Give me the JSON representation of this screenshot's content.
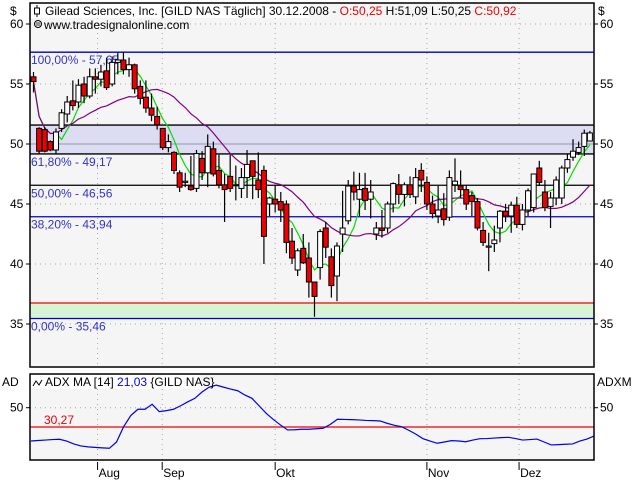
{
  "header": {
    "symbol_icon": "candlestick-icon",
    "title": "Gilead Sciences, Inc. [GILD NAS  Täglich] 30.12.2008 -",
    "open": "O:50,25",
    "high": "H:51,09",
    "low": "L:50,25",
    "close": "C:50,92",
    "copyright_icon": "copyright-icon",
    "website": "www.tradesignalonline.com"
  },
  "colors": {
    "up": "#ffffff",
    "down": "#ee0000",
    "fast_ma": "#00dd00",
    "slow_ma": "#800080",
    "fib": "#0000cc",
    "adx": "#0000ee",
    "threshold": "#ee0000"
  },
  "chart_data": [
    {
      "type": "candlestick",
      "yaxis_unit": "$",
      "ylim": [
        32,
        62
      ],
      "yticks": [
        "60",
        "55",
        "50",
        "45",
        "40",
        "35"
      ],
      "ytick_values": [
        60,
        55,
        50,
        45,
        40,
        35
      ],
      "xticks": [
        "Aug",
        "Sep",
        "Okt",
        "Nov",
        "Dez"
      ],
      "xtick_index": [
        11.4,
        22.9,
        43,
        70,
        86.4
      ],
      "grid": true,
      "ohlc": [
        [
          55.6,
          56.0,
          54.3,
          55.2
        ],
        [
          51.3,
          51.4,
          49.2,
          49.4
        ],
        [
          51.2,
          51.4,
          49.3,
          49.4
        ],
        [
          50.2,
          50.3,
          49.4,
          49.5
        ],
        [
          49.5,
          51.3,
          49.2,
          51.0
        ],
        [
          51.3,
          52.9,
          51.0,
          52.6
        ],
        [
          52.5,
          54.0,
          51.8,
          53.5
        ],
        [
          53.6,
          55.3,
          52.8,
          53.2
        ],
        [
          53.5,
          55.4,
          53.0,
          54.9
        ],
        [
          55.0,
          55.6,
          53.4,
          54.0
        ],
        [
          54.0,
          56.3,
          53.8,
          55.6
        ],
        [
          55.6,
          56.3,
          54.2,
          55.4
        ],
        [
          55.4,
          56.6,
          54.8,
          56.0
        ],
        [
          56.1,
          57.2,
          54.5,
          54.7
        ],
        [
          55.0,
          57.3,
          54.8,
          56.8
        ],
        [
          56.8,
          57.6,
          55.8,
          57.0
        ],
        [
          57.0,
          57.7,
          55.8,
          56.2
        ],
        [
          56.2,
          57.2,
          55.6,
          56.6
        ],
        [
          56.6,
          56.7,
          54.2,
          54.6
        ],
        [
          54.8,
          55.3,
          53.3,
          53.8
        ],
        [
          53.9,
          55.3,
          52.6,
          53.0
        ],
        [
          53.0,
          54.2,
          51.9,
          52.4
        ],
        [
          52.3,
          53.1,
          51.2,
          51.6
        ],
        [
          51.3,
          51.3,
          49.5,
          49.7
        ],
        [
          49.7,
          50.8,
          49.3,
          50.2
        ],
        [
          49.3,
          49.4,
          47.5,
          47.8
        ],
        [
          47.6,
          47.8,
          46.0,
          46.4
        ],
        [
          46.8,
          47.6,
          46.4,
          46.9
        ],
        [
          46.5,
          49.0,
          46.1,
          46.2
        ],
        [
          46.3,
          49.5,
          46.0,
          49.2
        ],
        [
          48.8,
          49.4,
          47.0,
          47.6
        ],
        [
          47.6,
          50.8,
          46.4,
          49.8
        ],
        [
          49.6,
          50.2,
          47.3,
          47.5
        ],
        [
          47.8,
          49.1,
          46.3,
          46.6
        ],
        [
          46.6,
          47.5,
          43.5,
          46.2
        ],
        [
          47.3,
          49.1,
          46.0,
          46.3
        ],
        [
          46.6,
          48.2,
          45.3,
          46.6
        ],
        [
          46.3,
          48.0,
          45.5,
          47.2
        ],
        [
          47.2,
          49.5,
          45.5,
          48.3
        ],
        [
          48.6,
          48.6,
          45.4,
          47.3
        ],
        [
          47.0,
          49.3,
          45.5,
          46.2
        ],
        [
          47.8,
          48.2,
          40.0,
          42.3
        ],
        [
          45.0,
          45.6,
          44.0,
          45.5
        ],
        [
          45.4,
          46.6,
          44.3,
          45.0
        ],
        [
          45.2,
          46.0,
          43.5,
          44.5
        ],
        [
          45.0,
          45.3,
          40.9,
          41.8
        ],
        [
          41.9,
          43.0,
          40.0,
          40.5
        ],
        [
          39.5,
          41.3,
          39.0,
          41.1
        ],
        [
          41.3,
          42.5,
          40.0,
          40.1
        ],
        [
          40.5,
          41.8,
          37.2,
          38.5
        ],
        [
          38.5,
          38.5,
          35.6,
          37.3
        ],
        [
          39.7,
          42.9,
          38.7,
          42.7
        ],
        [
          43.0,
          43.5,
          40.5,
          41.4
        ],
        [
          40.6,
          41.3,
          37.2,
          38.2
        ],
        [
          39.0,
          41.8,
          36.9,
          41.5
        ],
        [
          42.5,
          46.1,
          41.0,
          43.0
        ],
        [
          43.6,
          47.0,
          43.3,
          46.5
        ],
        [
          46.5,
          47.7,
          45.3,
          46.0
        ],
        [
          45.4,
          47.6,
          44.0,
          46.2
        ],
        [
          46.3,
          47.6,
          44.5,
          45.3
        ],
        [
          45.4,
          47.0,
          43.8,
          46.0
        ],
        [
          42.5,
          43.5,
          42.0,
          43.0
        ],
        [
          43.0,
          44.5,
          42.2,
          42.8
        ],
        [
          43.0,
          45.2,
          42.6,
          45.0
        ],
        [
          45.0,
          46.8,
          44.3,
          46.7
        ],
        [
          46.6,
          47.5,
          45.0,
          45.8
        ],
        [
          45.8,
          46.8,
          44.8,
          46.6
        ],
        [
          46.6,
          47.3,
          45.5,
          45.8
        ],
        [
          45.6,
          48.0,
          45.0,
          47.2
        ],
        [
          47.8,
          48.4,
          46.0,
          47.0
        ],
        [
          46.8,
          47.3,
          44.5,
          45.0
        ],
        [
          45.0,
          45.7,
          43.8,
          44.2
        ],
        [
          44.0,
          46.5,
          43.4,
          44.5
        ],
        [
          44.6,
          45.9,
          43.2,
          43.7
        ],
        [
          43.9,
          47.8,
          43.6,
          47.2
        ],
        [
          46.6,
          48.8,
          46.0,
          46.9
        ],
        [
          46.5,
          47.8,
          45.5,
          46.2
        ],
        [
          46.2,
          46.6,
          44.5,
          45.0
        ],
        [
          45.7,
          46.0,
          44.0,
          45.2
        ],
        [
          45.2,
          45.5,
          42.8,
          43.0
        ],
        [
          42.8,
          43.5,
          41.5,
          41.8
        ],
        [
          41.4,
          42.6,
          39.4,
          41.5
        ],
        [
          41.7,
          43.2,
          41.0,
          42.0
        ],
        [
          43.0,
          44.5,
          41.8,
          44.4
        ],
        [
          44.4,
          45.0,
          43.5,
          44.0
        ],
        [
          44.0,
          45.2,
          42.6,
          44.9
        ],
        [
          44.9,
          45.6,
          43.0,
          43.3
        ],
        [
          43.3,
          45.0,
          42.8,
          44.5
        ],
        [
          44.5,
          46.3,
          44.0,
          46.1
        ],
        [
          44.7,
          47.5,
          44.3,
          47.5
        ],
        [
          48.0,
          48.6,
          46.5,
          46.8
        ],
        [
          46.0,
          47.0,
          44.4,
          44.7
        ],
        [
          44.8,
          46.0,
          43.0,
          45.5
        ],
        [
          45.5,
          47.3,
          44.9,
          47.0
        ],
        [
          45.5,
          48.2,
          45.0,
          48.0
        ],
        [
          48.0,
          49.2,
          47.6,
          48.7
        ],
        [
          48.9,
          50.4,
          48.6,
          49.4
        ],
        [
          49.3,
          50.2,
          49.1,
          49.7
        ],
        [
          49.8,
          51.2,
          49.0,
          50.9
        ],
        [
          50.25,
          51.09,
          50.25,
          50.92
        ]
      ],
      "fib_levels": [
        {
          "label": "100,00% - 57,65",
          "value": 57.65
        },
        {
          "label": "61,80% - 49,17",
          "value": 49.17
        },
        {
          "label": "50,00% - 46,56",
          "value": 46.56
        },
        {
          "label": "38,20% - 43,94",
          "value": 43.94
        },
        {
          "label": "0,00% - 35,46",
          "value": 35.46
        }
      ],
      "upper_zone": [
        49.17,
        51.58
      ],
      "lower_zone": [
        35.46,
        36.75
      ]
    },
    {
      "type": "line",
      "legend_icon": "line-indicator-icon",
      "name": "ADX MA [14]",
      "last_value": "21,03",
      "symbol": "{GILD NAS}",
      "left_label": "AD",
      "right_label": "ADXM",
      "ylim": [
        -1,
        83
      ],
      "yticks": [
        "50"
      ],
      "ytick_values": [
        50
      ],
      "threshold": {
        "label": "30,27",
        "value": 30.27
      },
      "values": [
        16,
        16.5,
        17,
        17.5,
        17.8,
        16,
        13,
        11,
        10,
        9.5,
        9,
        8.6,
        15,
        30.6,
        42,
        48.4,
        48.4,
        53.5,
        46,
        47,
        48.4,
        52,
        56,
        59.6,
        66,
        71,
        73,
        71,
        69,
        67.3,
        63,
        59.6,
        52,
        44.3,
        38,
        32.4,
        27.3,
        27.5,
        28,
        28,
        28.5,
        29,
        33,
        38.2,
        38,
        37.8,
        37.5,
        37,
        36.8,
        36.4,
        34,
        32,
        30.6,
        27,
        23,
        18.4,
        16,
        13.7,
        15,
        16.4,
        16,
        15.3,
        17,
        18.4,
        18.5,
        19,
        19.5,
        19.8,
        18.5,
        17,
        17.5,
        18,
        15,
        12,
        12.3,
        12.7,
        13,
        16,
        18,
        21.03
      ]
    }
  ]
}
